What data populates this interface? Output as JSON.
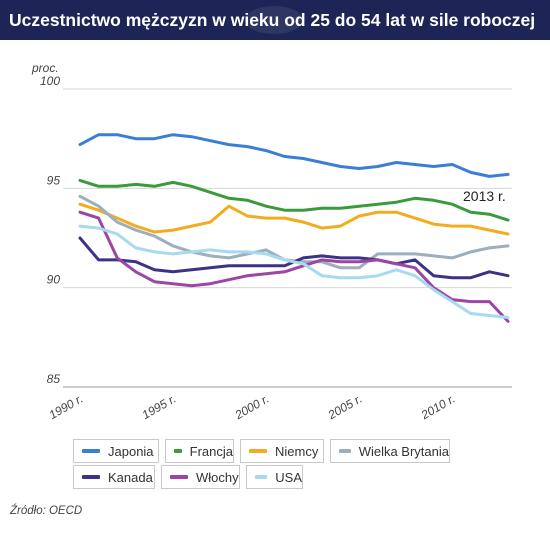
{
  "title": "Uczestnictwo mężczyzn w wieku od 25 do 54 lat w sile roboczej",
  "source": "Źródło: OECD",
  "chart_data": {
    "type": "line",
    "title": "Uczestnictwo mężczyzn w wieku od 25 do 54 lat w sile roboczej",
    "ylabel": "proc.",
    "xlabel": "",
    "ylim": [
      85,
      100
    ],
    "xlim": [
      1990,
      2013
    ],
    "yticks": [
      "85",
      "90",
      "95",
      "100"
    ],
    "xticks": [
      "1990 r.",
      "1995 r.",
      "2000 r.",
      "2005 r.",
      "2010 r."
    ],
    "grid": true,
    "legend_position": "bottom",
    "annotation": "2013 r.",
    "x": [
      1990,
      1991,
      1992,
      1993,
      1994,
      1995,
      1996,
      1997,
      1998,
      1999,
      2000,
      2001,
      2002,
      2003,
      2004,
      2005,
      2006,
      2007,
      2008,
      2009,
      2010,
      2011,
      2012,
      2013
    ],
    "series": [
      {
        "name": "Japonia",
        "color": "#3a7fd5",
        "values": [
          97.2,
          97.7,
          97.7,
          97.5,
          97.5,
          97.7,
          97.6,
          97.4,
          97.2,
          97.1,
          96.9,
          96.6,
          96.5,
          96.3,
          96.1,
          96.0,
          96.1,
          96.3,
          96.2,
          96.1,
          96.2,
          95.8,
          95.6,
          95.7
        ]
      },
      {
        "name": "Francja",
        "color": "#3c9a3c",
        "values": [
          95.4,
          95.1,
          95.1,
          95.2,
          95.1,
          95.3,
          95.1,
          94.8,
          94.5,
          94.4,
          94.1,
          93.9,
          93.9,
          94.0,
          94.0,
          94.1,
          94.2,
          94.3,
          94.5,
          94.4,
          94.2,
          93.8,
          93.7,
          93.4
        ]
      },
      {
        "name": "Niemcy",
        "color": "#f2ac1f",
        "values": [
          94.2,
          93.9,
          93.5,
          93.1,
          92.8,
          92.9,
          93.1,
          93.3,
          94.1,
          93.6,
          93.5,
          93.5,
          93.3,
          93.0,
          93.1,
          93.6,
          93.8,
          93.8,
          93.5,
          93.2,
          93.1,
          93.1,
          92.9,
          92.7
        ]
      },
      {
        "name": "Wielka Brytania",
        "color": "#9daebd",
        "values": [
          94.6,
          94.1,
          93.3,
          92.9,
          92.6,
          92.1,
          91.8,
          91.6,
          91.5,
          91.7,
          91.9,
          91.4,
          91.3,
          91.3,
          91.0,
          91.0,
          91.7,
          91.7,
          91.7,
          91.6,
          91.5,
          91.8,
          92.0,
          92.1
        ]
      },
      {
        "name": "Kanada",
        "color": "#3c3286",
        "values": [
          92.5,
          91.4,
          91.4,
          91.3,
          90.9,
          90.8,
          90.9,
          91.0,
          91.1,
          91.1,
          91.1,
          91.1,
          91.5,
          91.6,
          91.5,
          91.5,
          91.4,
          91.2,
          91.4,
          90.6,
          90.5,
          90.5,
          90.8,
          90.6
        ]
      },
      {
        "name": "Włochy",
        "color": "#9b46a6",
        "values": [
          93.8,
          93.5,
          91.5,
          90.8,
          90.3,
          90.2,
          90.1,
          90.2,
          90.4,
          90.6,
          90.7,
          90.8,
          91.1,
          91.4,
          91.3,
          91.3,
          91.4,
          91.2,
          91.0,
          90.0,
          89.4,
          89.3,
          89.3,
          88.3
        ]
      },
      {
        "name": "USA",
        "color": "#a7daf0",
        "values": [
          93.1,
          93.0,
          92.7,
          92.0,
          91.8,
          91.7,
          91.8,
          91.9,
          91.8,
          91.8,
          91.7,
          91.4,
          91.2,
          90.6,
          90.5,
          90.5,
          90.6,
          90.9,
          90.6,
          89.9,
          89.3,
          88.7,
          88.6,
          88.5
        ]
      }
    ]
  }
}
